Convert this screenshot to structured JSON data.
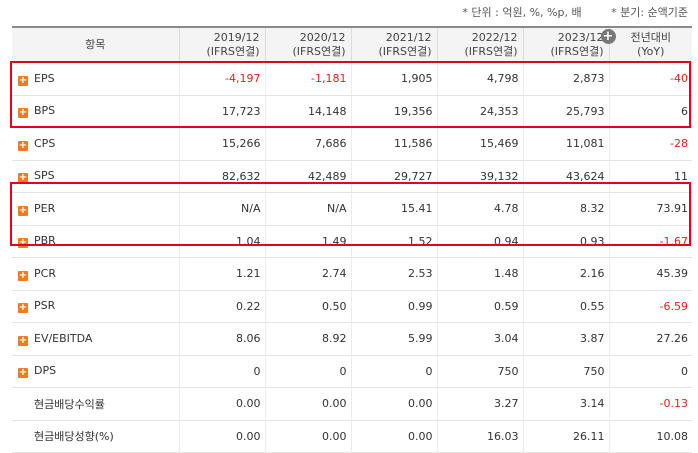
{
  "notes": {
    "unit": "* 단위 : 억원, %, %p, 배",
    "basis": "* 분기: 순액기준"
  },
  "header": {
    "item": "항목",
    "periods": [
      {
        "year": "2019/12",
        "basis": "(IFRS연결)"
      },
      {
        "year": "2020/12",
        "basis": "(IFRS연결)"
      },
      {
        "year": "2021/12",
        "basis": "(IFRS연결)"
      },
      {
        "year": "2022/12",
        "basis": "(IFRS연결)"
      },
      {
        "year": "2023/12",
        "basis": "(IFRS연결)"
      }
    ],
    "yoy_line1": "전년대비",
    "yoy_line2": "(YoY)",
    "expand_icon": "+"
  },
  "expand_symbol": "+",
  "colors": {
    "accent": "#f07a1e",
    "negative": "#e21f1f",
    "highlight_border": "#e5001e"
  },
  "rows": [
    {
      "label": "EPS",
      "expandable": true,
      "values": [
        "-4,197",
        "-1,181",
        "1,905",
        "4,798",
        "2,873"
      ],
      "yoy": "-40"
    },
    {
      "label": "BPS",
      "expandable": true,
      "values": [
        "17,723",
        "14,148",
        "19,356",
        "24,353",
        "25,793"
      ],
      "yoy": "6"
    },
    {
      "label": "CPS",
      "expandable": true,
      "values": [
        "15,266",
        "7,686",
        "11,586",
        "15,469",
        "11,081"
      ],
      "yoy": "-28"
    },
    {
      "label": "SPS",
      "expandable": true,
      "values": [
        "82,632",
        "42,489",
        "29,727",
        "39,132",
        "43,624"
      ],
      "yoy": "11"
    },
    {
      "label": "PER",
      "expandable": true,
      "values": [
        "N/A",
        "N/A",
        "15.41",
        "4.78",
        "8.32"
      ],
      "yoy": "73.91"
    },
    {
      "label": "PBR",
      "expandable": true,
      "values": [
        "1.04",
        "1.49",
        "1.52",
        "0.94",
        "0.93"
      ],
      "yoy": "-1.67"
    },
    {
      "label": "PCR",
      "expandable": true,
      "values": [
        "1.21",
        "2.74",
        "2.53",
        "1.48",
        "2.16"
      ],
      "yoy": "45.39"
    },
    {
      "label": "PSR",
      "expandable": true,
      "values": [
        "0.22",
        "0.50",
        "0.99",
        "0.59",
        "0.55"
      ],
      "yoy": "-6.59"
    },
    {
      "label": "EV/EBITDA",
      "expandable": true,
      "values": [
        "8.06",
        "8.92",
        "5.99",
        "3.04",
        "3.87"
      ],
      "yoy": "27.26"
    },
    {
      "label": "DPS",
      "expandable": true,
      "values": [
        "0",
        "0",
        "0",
        "750",
        "750"
      ],
      "yoy": "0"
    },
    {
      "label": "현금배당수익률",
      "expandable": false,
      "values": [
        "0.00",
        "0.00",
        "0.00",
        "3.27",
        "3.14"
      ],
      "yoy": "-0.13"
    },
    {
      "label": "현금배당성향(%)",
      "expandable": false,
      "values": [
        "0.00",
        "0.00",
        "0.00",
        "16.03",
        "26.11"
      ],
      "yoy": "10.08"
    }
  ]
}
